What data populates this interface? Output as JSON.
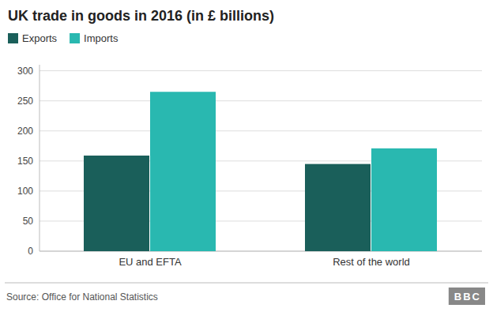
{
  "chart_data": {
    "type": "bar",
    "title": "UK trade in goods in 2016 (in £ billions)",
    "categories": [
      "EU and EFTA",
      "Rest of the world"
    ],
    "series": [
      {
        "name": "Exports",
        "color": "#1a5f5a",
        "values": [
          159,
          145
        ]
      },
      {
        "name": "Imports",
        "color": "#29b8b0",
        "values": [
          265,
          171
        ]
      }
    ],
    "ylim": [
      0,
      310
    ],
    "yticks": [
      0,
      50,
      100,
      150,
      200,
      250,
      300
    ],
    "grid": true,
    "legend": "upper left",
    "annotations": [
      "Source: Office for National Statistics",
      "BBC"
    ]
  }
}
